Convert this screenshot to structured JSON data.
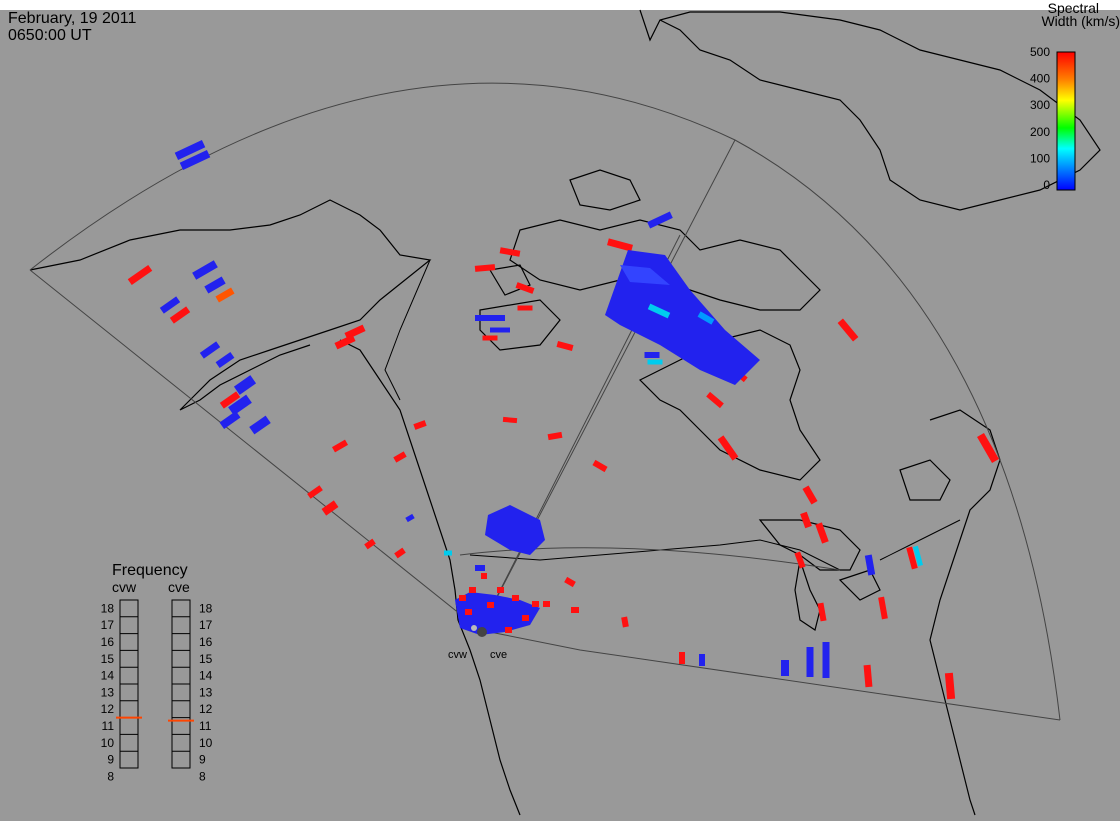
{
  "header": {
    "date": "February, 19 2011",
    "time": "0650:00 UT"
  },
  "legend": {
    "title_line1": "Spectral",
    "title_line2": "Width (km/s)",
    "ticks": [
      "500",
      "400",
      "300",
      "200",
      "100",
      "0"
    ],
    "range": [
      0,
      500
    ],
    "colors": [
      "#0000ff",
      "#0080ff",
      "#00ffff",
      "#00ff00",
      "#ffff00",
      "#ff8000",
      "#ff0000"
    ]
  },
  "frequency_panel": {
    "title": "Frequency",
    "radars": [
      {
        "name": "cvw",
        "frequency_mhz": 10.8
      },
      {
        "name": "cve",
        "frequency_mhz": 10.6
      }
    ],
    "scale": [
      "18",
      "17",
      "16",
      "15",
      "14",
      "13",
      "12",
      "11",
      "10",
      "9",
      "8"
    ]
  },
  "radar_sites": [
    {
      "label": "cvw"
    },
    {
      "label": "cve"
    }
  ],
  "colors": {
    "background": "#999999",
    "low_width": "#2222ee",
    "high_width": "#ff1111",
    "mid_width": "#00ccee",
    "frequency_marker": "#ff4400"
  }
}
